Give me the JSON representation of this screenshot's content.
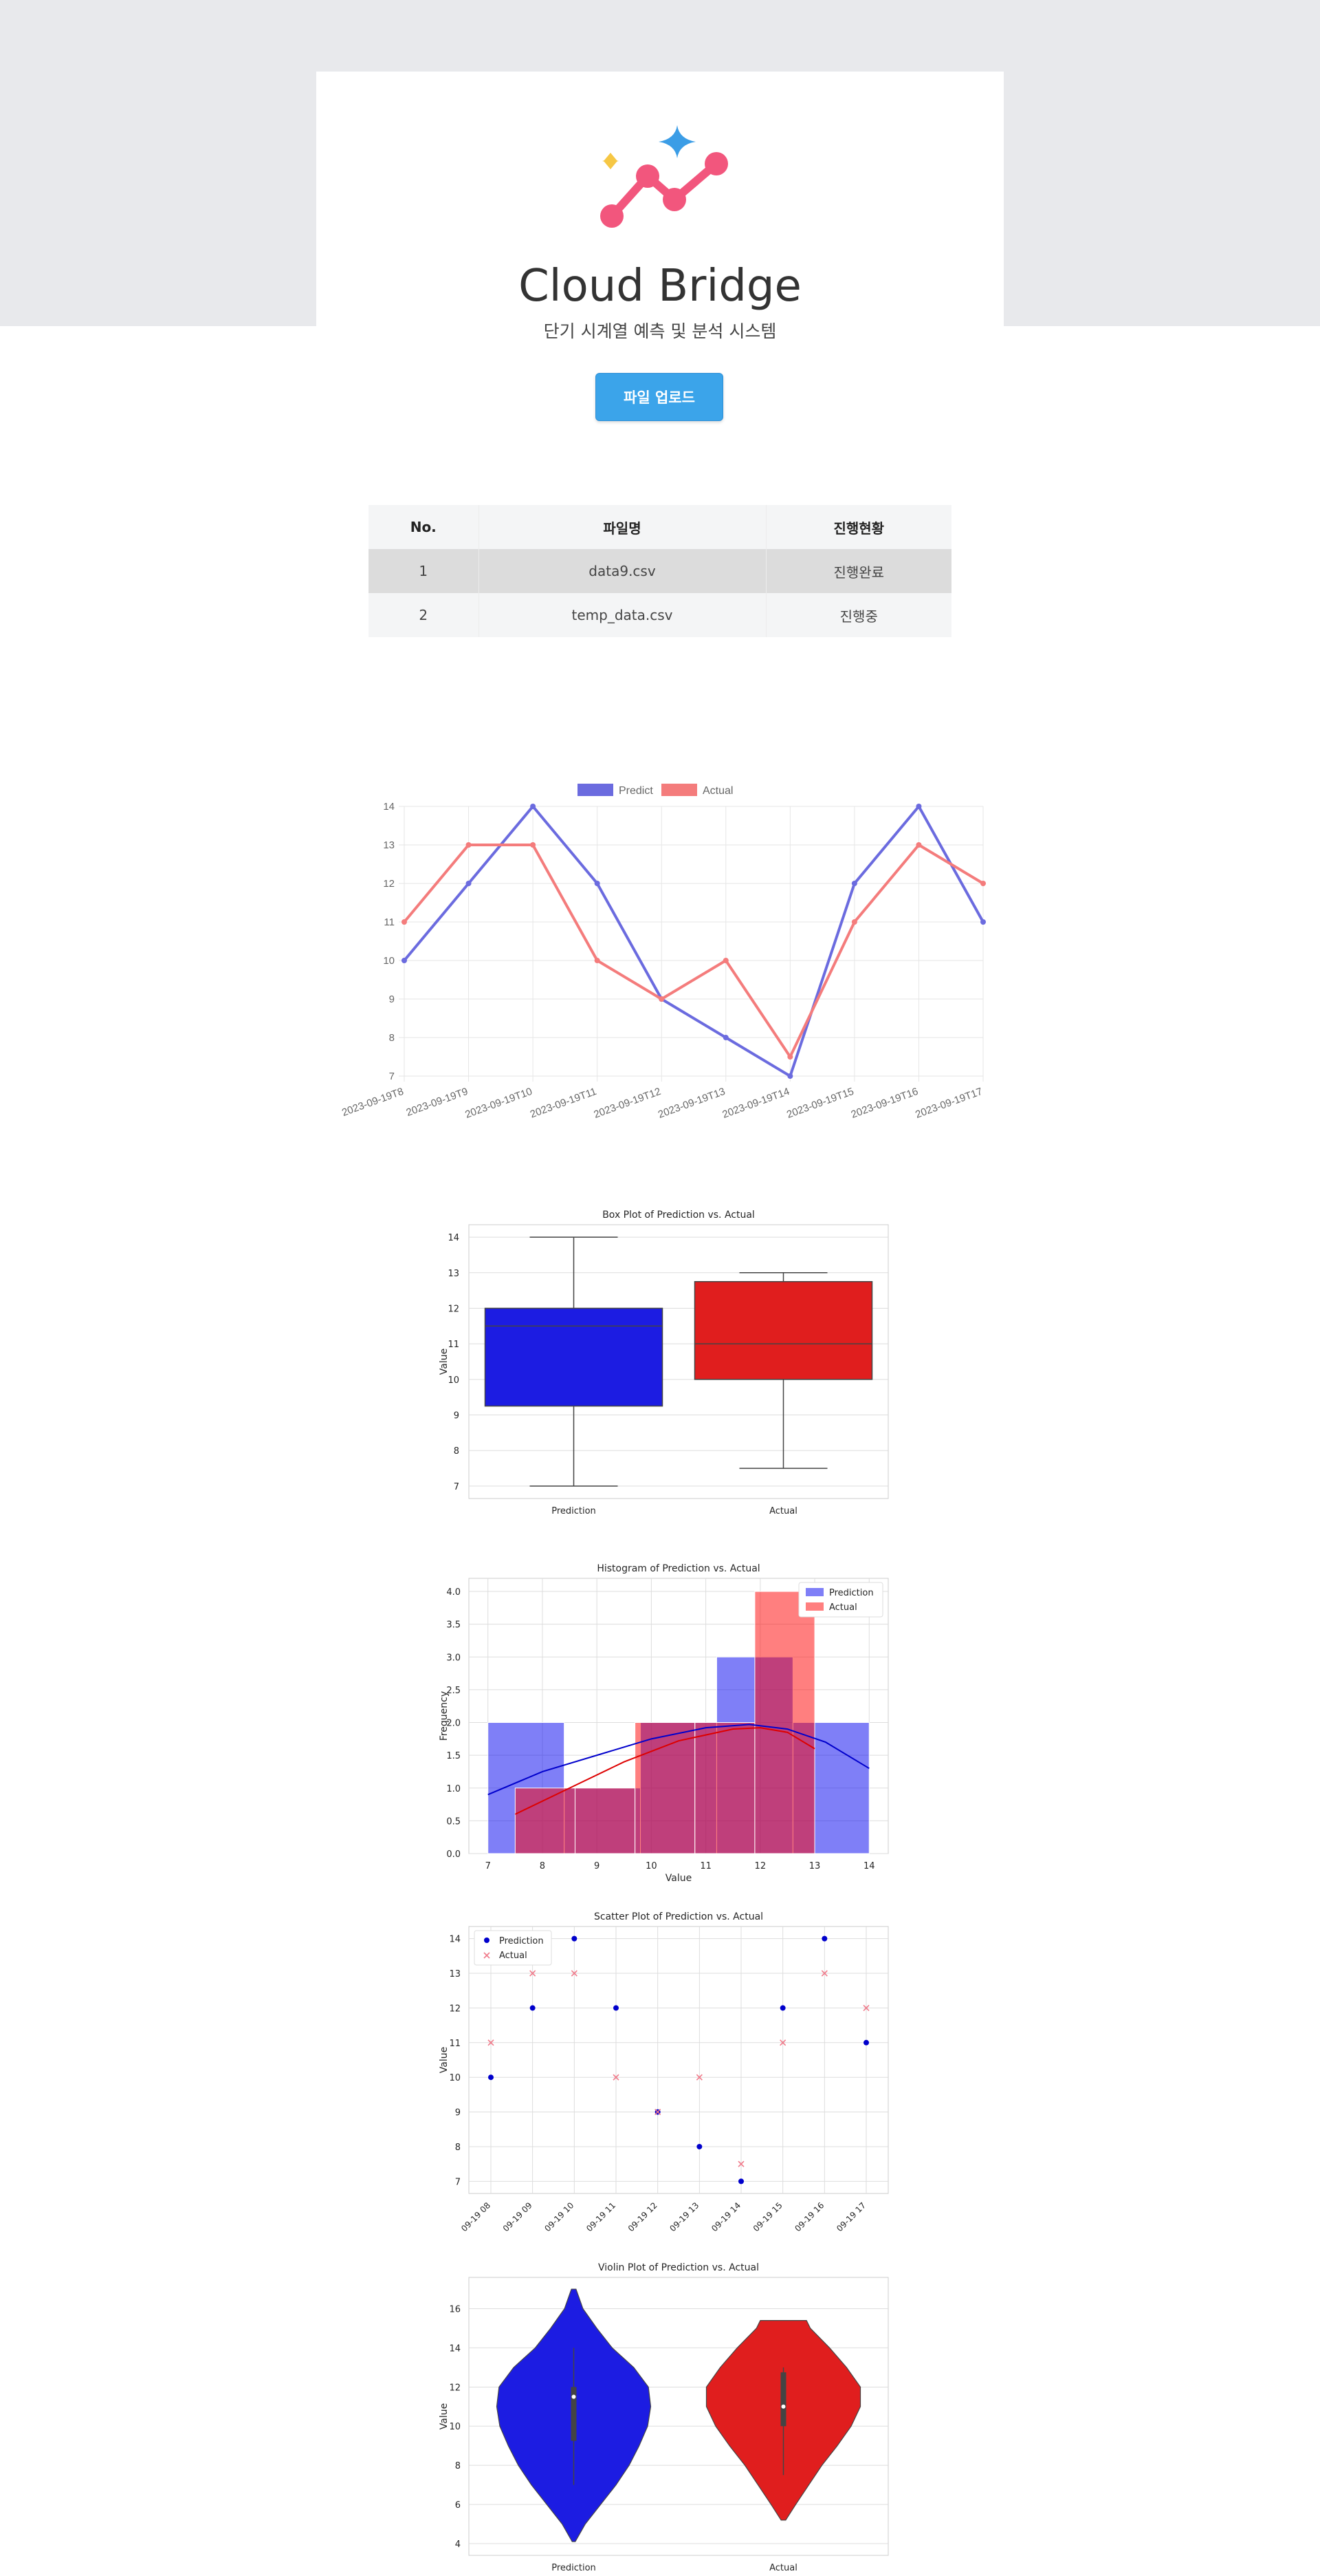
{
  "header": {
    "title": "Cloud Bridge",
    "subtitle": "단기 시계열 예측 및 분석 시스템",
    "upload_label": "파일 업로드"
  },
  "file_table": {
    "columns": [
      "No.",
      "파일명",
      "진행현황"
    ],
    "rows": [
      {
        "no": "1",
        "file": "data9.csv",
        "status": "진행완료"
      },
      {
        "no": "2",
        "file": "temp_data.csv",
        "status": "진행중"
      }
    ]
  },
  "colors": {
    "predict": "#6b6bdf",
    "actual": "#f47c7c",
    "prediction_fill": "#1c1ce2",
    "actual_fill": "#e01e1e"
  },
  "charts": {
    "line": {
      "type": "line",
      "categories": [
        "2023-09-19T8",
        "2023-09-19T9",
        "2023-09-19T10",
        "2023-09-19T11",
        "2023-09-19T12",
        "2023-09-19T13",
        "2023-09-19T14",
        "2023-09-19T15",
        "2023-09-19T16",
        "2023-09-19T17"
      ],
      "series": [
        {
          "name": "Predict",
          "values": [
            10,
            12,
            14,
            12,
            9,
            8,
            7,
            12,
            14,
            11
          ]
        },
        {
          "name": "Actual",
          "values": [
            11,
            13,
            13,
            10,
            9,
            10,
            7.5,
            11,
            13,
            12
          ]
        }
      ],
      "yticks": [
        7,
        8,
        9,
        10,
        11,
        12,
        13,
        14
      ],
      "ylim": [
        7,
        14
      ],
      "legend": "top"
    },
    "box": {
      "type": "box",
      "title": "Box Plot of Prediction vs. Actual",
      "ylabel": "Value",
      "categories": [
        "Prediction",
        "Actual"
      ],
      "boxes": [
        {
          "min": 7,
          "q1": 9.25,
          "median": 11.5,
          "q3": 12,
          "max": 14
        },
        {
          "min": 7.5,
          "q1": 10,
          "median": 11,
          "q3": 12.75,
          "max": 13
        }
      ],
      "yticks": [
        "7",
        "8",
        "9",
        "10",
        "11",
        "12",
        "13",
        "14"
      ],
      "ylim": [
        6.65,
        14.35
      ]
    },
    "hist": {
      "type": "histogram",
      "title": "Histogram of Prediction vs. Actual",
      "xlabel": "Value",
      "ylabel": "Frequency",
      "series": [
        {
          "name": "Prediction",
          "bins": [
            [
              7,
              8.4,
              2
            ],
            [
              8.4,
              9.8,
              1
            ],
            [
              9.8,
              11.2,
              2
            ],
            [
              11.2,
              12.6,
              3
            ],
            [
              12.6,
              14,
              2
            ]
          ],
          "kde": [
            [
              7,
              0.9
            ],
            [
              8,
              1.25
            ],
            [
              9,
              1.5
            ],
            [
              10,
              1.75
            ],
            [
              11,
              1.92
            ],
            [
              11.8,
              1.97
            ],
            [
              12.5,
              1.9
            ],
            [
              13.2,
              1.7
            ],
            [
              14,
              1.3
            ]
          ]
        },
        {
          "name": "Actual",
          "bins": [
            [
              7.5,
              8.6,
              1
            ],
            [
              8.6,
              9.7,
              1
            ],
            [
              9.7,
              10.8,
              2
            ],
            [
              10.8,
              11.9,
              2
            ],
            [
              11.9,
              13,
              4
            ]
          ],
          "kde": [
            [
              7.5,
              0.6
            ],
            [
              8.5,
              1.0
            ],
            [
              9.5,
              1.4
            ],
            [
              10.5,
              1.72
            ],
            [
              11.5,
              1.9
            ],
            [
              12,
              1.92
            ],
            [
              12.5,
              1.85
            ],
            [
              13,
              1.6
            ]
          ]
        }
      ],
      "xticks": [
        "7",
        "8",
        "9",
        "10",
        "11",
        "12",
        "13",
        "14"
      ],
      "yticks": [
        "0.0",
        "0.5",
        "1.0",
        "1.5",
        "2.0",
        "2.5",
        "3.0",
        "3.5",
        "4.0"
      ],
      "xlim": [
        6.65,
        14.35
      ],
      "ylim": [
        0,
        4.2
      ],
      "legend": "top-right"
    },
    "scatter": {
      "type": "scatter",
      "title": "Scatter Plot of Prediction vs. Actual",
      "ylabel": "Value",
      "categories": [
        "09-19 08",
        "09-19 09",
        "09-19 10",
        "09-19 11",
        "09-19 12",
        "09-19 13",
        "09-19 14",
        "09-19 15",
        "09-19 16",
        "09-19 17"
      ],
      "series": [
        {
          "name": "Prediction",
          "values": [
            10,
            12,
            14,
            12,
            9,
            8,
            7,
            12,
            14,
            11
          ]
        },
        {
          "name": "Actual",
          "values": [
            11,
            13,
            13,
            10,
            9,
            10,
            7.5,
            11,
            13,
            12
          ]
        }
      ],
      "yticks": [
        "7",
        "8",
        "9",
        "10",
        "11",
        "12",
        "13",
        "14"
      ],
      "ylim": [
        6.65,
        14.35
      ],
      "legend": "top-left"
    },
    "violin": {
      "type": "violin",
      "title": "Violin Plot of Prediction vs. Actual",
      "ylabel": "Value",
      "categories": [
        "Prediction",
        "Actual"
      ],
      "violins": [
        {
          "profile": [
            [
              4.1,
              0.02
            ],
            [
              5,
              0.15
            ],
            [
              6,
              0.35
            ],
            [
              7,
              0.55
            ],
            [
              8,
              0.72
            ],
            [
              9,
              0.85
            ],
            [
              10,
              0.96
            ],
            [
              11,
              1.0
            ],
            [
              12,
              0.97
            ],
            [
              13,
              0.78
            ],
            [
              14,
              0.5
            ],
            [
              15,
              0.3
            ],
            [
              16,
              0.12
            ],
            [
              17,
              0.03
            ]
          ],
          "q1": 9.25,
          "median": 11.5,
          "q3": 12,
          "min": 7,
          "max": 14
        },
        {
          "profile": [
            [
              5.2,
              0.03
            ],
            [
              6,
              0.16
            ],
            [
              7,
              0.33
            ],
            [
              8,
              0.5
            ],
            [
              9,
              0.7
            ],
            [
              10,
              0.88
            ],
            [
              11,
              1.0
            ],
            [
              12,
              1.0
            ],
            [
              13,
              0.82
            ],
            [
              14,
              0.6
            ],
            [
              15,
              0.35
            ],
            [
              15.4,
              0.3
            ]
          ],
          "q1": 10,
          "median": 11,
          "q3": 12.75,
          "min": 7.5,
          "max": 13
        }
      ],
      "yticks": [
        "4",
        "6",
        "8",
        "10",
        "12",
        "14",
        "16"
      ],
      "ylim": [
        3.4,
        17.6
      ]
    }
  }
}
